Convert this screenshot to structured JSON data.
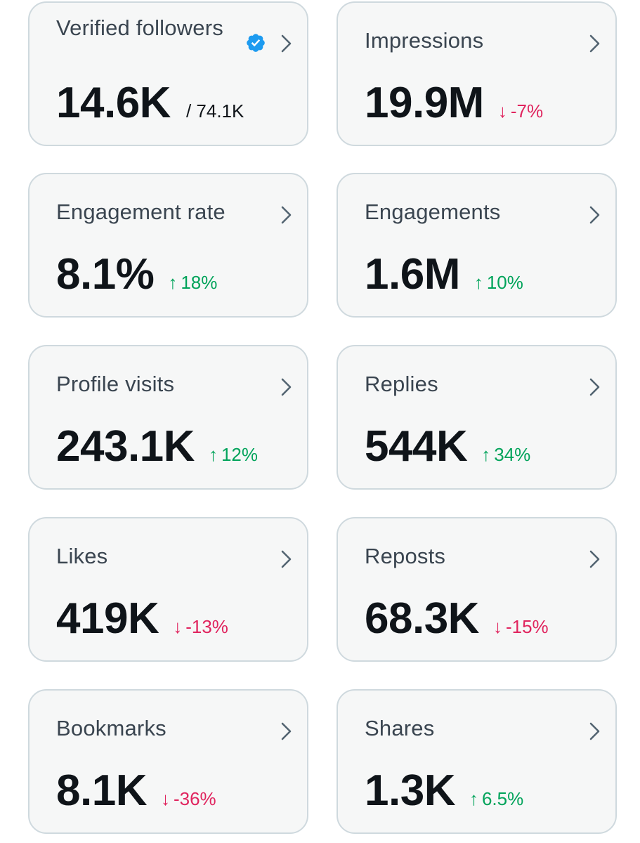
{
  "colors": {
    "card_bg": "#f6f7f7",
    "card_border": "#cfd9de",
    "up": "#00a35a",
    "down": "#e0245e",
    "verified": "#1d9bf0"
  },
  "icons": {
    "chevron": "chevron-right-icon",
    "verified": "verified-badge-icon",
    "up": "arrow-up-icon",
    "down": "arrow-down-icon"
  },
  "cards": {
    "verified_followers": {
      "label": "Verified followers",
      "value": "14.6K",
      "sub": "/ 74.1K"
    },
    "impressions": {
      "label": "Impressions",
      "value": "19.9M",
      "arrow": "↓",
      "delta": "-7%"
    },
    "engagement_rate": {
      "label": "Engagement rate",
      "value": "8.1%",
      "arrow": "↑",
      "delta": "18%"
    },
    "engagements": {
      "label": "Engagements",
      "value": "1.6M",
      "arrow": "↑",
      "delta": "10%"
    },
    "profile_visits": {
      "label": "Profile visits",
      "value": "243.1K",
      "arrow": "↑",
      "delta": "12%"
    },
    "replies": {
      "label": "Replies",
      "value": "544K",
      "arrow": "↑",
      "delta": "34%"
    },
    "likes": {
      "label": "Likes",
      "value": "419K",
      "arrow": "↓",
      "delta": "-13%"
    },
    "reposts": {
      "label": "Reposts",
      "value": "68.3K",
      "arrow": "↓",
      "delta": "-15%"
    },
    "bookmarks": {
      "label": "Bookmarks",
      "value": "8.1K",
      "arrow": "↓",
      "delta": "-36%"
    },
    "shares": {
      "label": "Shares",
      "value": "1.3K",
      "arrow": "↑",
      "delta": "6.5%"
    }
  }
}
